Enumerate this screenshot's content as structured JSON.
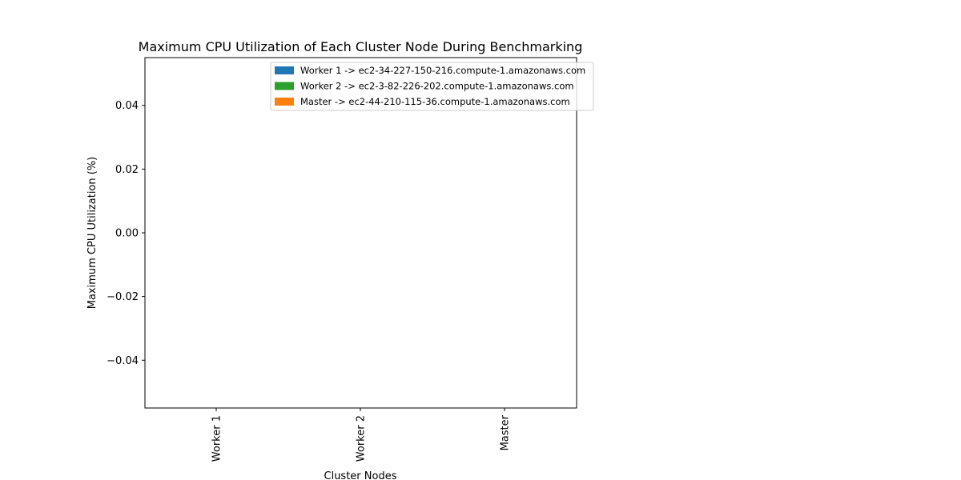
{
  "chart_data": {
    "type": "bar",
    "title": "Maximum CPU Utilization of Each Cluster Node During Benchmarking",
    "xlabel": "Cluster Nodes",
    "ylabel": "Maximum CPU Utilization (%)",
    "categories": [
      "Worker 1",
      "Worker 2",
      "Master"
    ],
    "values": [
      0,
      0,
      0
    ],
    "colors": [
      "#1f77b4",
      "#2ca02c",
      "#ff7f0e"
    ],
    "ylim": [
      -0.055,
      0.055
    ],
    "yticks": [
      -0.04,
      -0.02,
      0.0,
      0.02,
      0.04
    ],
    "ytick_labels": [
      "−0.04",
      "−0.02",
      "0.00",
      "0.02",
      "0.04"
    ],
    "legend": {
      "placement": "upper-right",
      "entries": [
        {
          "label": "Worker 1 -> ec2-34-227-150-216.compute-1.amazonaws.com",
          "color": "#1f77b4"
        },
        {
          "label": "Worker 2 -> ec2-3-82-226-202.compute-1.amazonaws.com",
          "color": "#2ca02c"
        },
        {
          "label": "Master -> ec2-44-210-115-36.compute-1.amazonaws.com",
          "color": "#ff7f0e"
        }
      ]
    },
    "grid": false
  }
}
